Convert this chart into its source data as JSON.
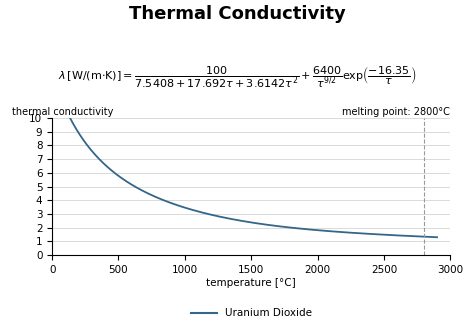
{
  "title": "Thermal Conductivity",
  "title_fontsize": 13,
  "title_fontweight": "bold",
  "ylabel": "thermal conductivity",
  "xlabel": "temperature [°C]",
  "melting_point_label": "melting point: 2800°C",
  "melting_point_x": 2800,
  "legend_label": "Uranium Dioxide",
  "xlim": [
    0,
    3000
  ],
  "ylim": [
    0,
    10
  ],
  "xticks": [
    0,
    500,
    1000,
    1500,
    2000,
    2500,
    3000
  ],
  "yticks": [
    0,
    1,
    2,
    3,
    4,
    5,
    6,
    7,
    8,
    9,
    10
  ],
  "line_color": "#336688",
  "grid_color": "#cccccc",
  "vline_color": "#999999",
  "bg_color": "#ffffff",
  "fig_bg_color": "#ffffff"
}
